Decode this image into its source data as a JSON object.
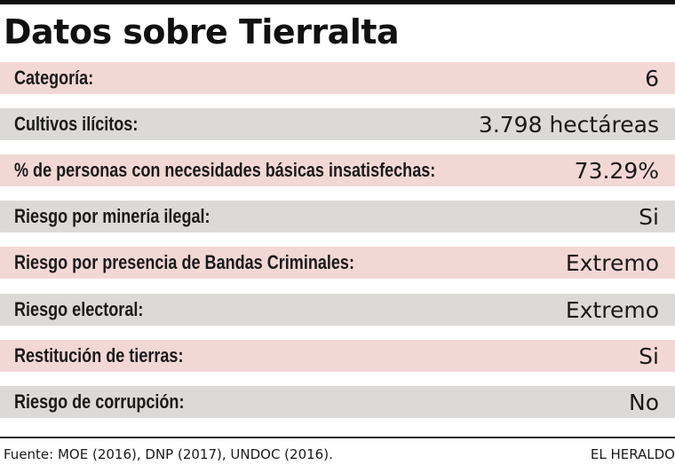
{
  "title": "Datos sobre Tierralta",
  "rows": [
    {
      "label": "Categoría:",
      "value": "6"
    },
    {
      "label": "Cultivos ilícitos:",
      "value": "3.798 hectáreas"
    },
    {
      "label": "% de personas con necesidades básicas insatisfechas:",
      "value": "73.29%"
    },
    {
      "label": "Riesgo por minería ilegal:",
      "value": "Si"
    },
    {
      "label": "Riesgo por presencia de Bandas Criminales:",
      "value": "Extremo"
    },
    {
      "label": "Riesgo electoral:",
      "value": "Extremo"
    },
    {
      "label": "Restitución de tierras:",
      "value": "Si"
    },
    {
      "label": "Riesgo de corrupción:",
      "value": "No"
    }
  ],
  "footer": {
    "source": "Fuente: MOE (2016), DNP (2017), UNDOC (2016).",
    "brand": "EL HERALDO"
  },
  "colors": {
    "row_pink": "#f2d8d5",
    "row_gray": "#dcdad8",
    "text": "#1a1a1a"
  }
}
